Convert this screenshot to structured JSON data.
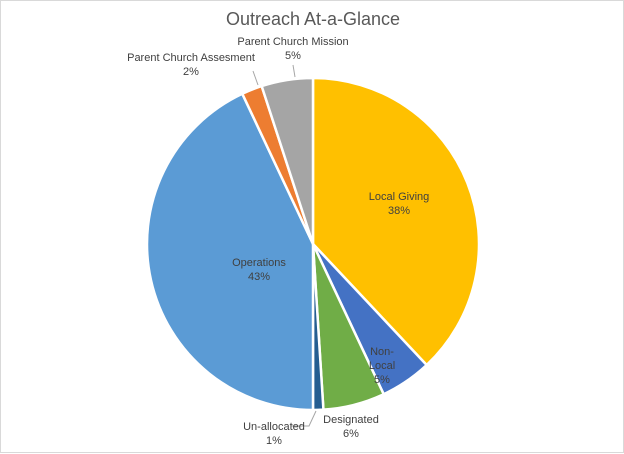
{
  "chart_data": {
    "type": "pie",
    "title": "Outreach At-a-Glance",
    "categories": [
      "Local Giving",
      "Non-Local",
      "Designated",
      "Un-allocated",
      "Operations",
      "Parent Church Assesment",
      "Parent Church Mission"
    ],
    "values": [
      38,
      5,
      6,
      1,
      43,
      2,
      5
    ],
    "labels": [
      "38%",
      "5%",
      "6%",
      "1%",
      "43%",
      "2%",
      "5%"
    ],
    "colors": [
      "#ffc000",
      "#4472c4",
      "#70ad47",
      "#255e91",
      "#5b9bd5",
      "#ed7d31",
      "#a5a5a5"
    ]
  }
}
